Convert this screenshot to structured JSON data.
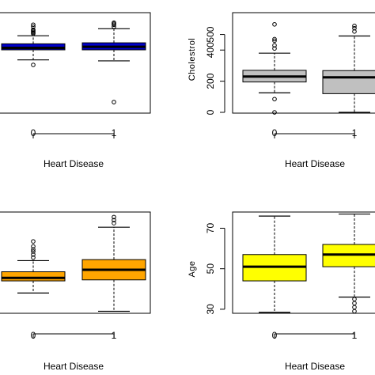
{
  "chart_data": [
    {
      "type": "boxplot",
      "xlabel": "Heart Disease",
      "ylabel": "",
      "categories": [
        "0",
        "1"
      ],
      "box_color": "#0000cc",
      "yticks": [],
      "ylim": [
        0,
        100
      ],
      "boxes": [
        {
          "category": "0",
          "whisker_low": 53,
          "q1": 63,
          "median": 65,
          "q3": 69,
          "whisker_high": 77,
          "outliers": [
            48,
            79,
            80,
            81,
            82,
            83,
            86,
            88
          ]
        },
        {
          "category": "1",
          "whisker_low": 52,
          "q1": 63,
          "median": 66,
          "q3": 70,
          "whisker_high": 84,
          "outliers": [
            11,
            86,
            88,
            89,
            90
          ]
        }
      ]
    },
    {
      "type": "boxplot",
      "xlabel": "Heart Disease",
      "ylabel": "Cholestrol",
      "categories": [
        "0",
        "1"
      ],
      "box_color": "#c0c0c0",
      "yticks": [
        0,
        200,
        400,
        500
      ],
      "ylim": [
        -5,
        640
      ],
      "boxes": [
        {
          "category": "0",
          "whisker_low": 125,
          "q1": 195,
          "median": 230,
          "q3": 270,
          "whisker_high": 380,
          "outliers": [
            0,
            85,
            410,
            430,
            460,
            470,
            565
          ]
        },
        {
          "category": "1",
          "whisker_low": 0,
          "q1": 120,
          "median": 225,
          "q3": 268,
          "whisker_high": 490,
          "outliers": [
            519,
            540,
            555
          ]
        }
      ]
    },
    {
      "type": "boxplot",
      "xlabel": "Heart Disease",
      "ylabel": "",
      "categories": [
        "0",
        "1"
      ],
      "box_color": "#ffa500",
      "yticks": [],
      "ylim": [
        0,
        100
      ],
      "boxes": [
        {
          "category": "0",
          "whisker_low": 20,
          "q1": 32,
          "median": 35,
          "q3": 41,
          "whisker_high": 52,
          "outliers": [
            55,
            58,
            61,
            63,
            66,
            71
          ]
        },
        {
          "category": "1",
          "whisker_low": 2,
          "q1": 33,
          "median": 43,
          "q3": 53,
          "whisker_high": 85,
          "outliers": [
            89,
            92,
            95
          ]
        }
      ]
    },
    {
      "type": "boxplot",
      "xlabel": "Heart Disease",
      "ylabel": "Age",
      "categories": [
        "0",
        "1"
      ],
      "box_color": "#ffff00",
      "yticks": [
        30,
        50,
        70
      ],
      "ylim": [
        28,
        78
      ],
      "boxes": [
        {
          "category": "0",
          "whisker_low": 28.5,
          "q1": 44,
          "median": 51,
          "q3": 57,
          "whisker_high": 76,
          "outliers": []
        },
        {
          "category": "1",
          "whisker_low": 36,
          "q1": 51,
          "median": 57,
          "q3": 62,
          "whisker_high": 77,
          "outliers": [
            29,
            31,
            33,
            35
          ]
        }
      ]
    }
  ]
}
